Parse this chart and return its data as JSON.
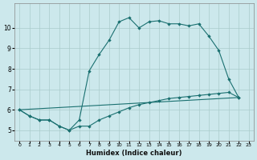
{
  "xlabel": "Humidex (Indice chaleur)",
  "background_color": "#cce8ec",
  "grid_color": "#aacccc",
  "line_color": "#1a7070",
  "xlim": [
    -0.5,
    23.5
  ],
  "ylim": [
    4.5,
    11.2
  ],
  "xticks": [
    0,
    1,
    2,
    3,
    4,
    5,
    6,
    7,
    8,
    9,
    10,
    11,
    12,
    13,
    14,
    15,
    16,
    17,
    18,
    19,
    20,
    21,
    22,
    23
  ],
  "yticks": [
    5,
    6,
    7,
    8,
    9,
    10
  ],
  "line1_x": [
    0,
    1,
    2,
    3,
    4,
    5,
    6,
    7,
    8,
    9,
    10,
    11,
    12,
    13,
    14,
    15,
    16,
    17,
    18,
    19,
    20,
    21,
    22
  ],
  "line1_y": [
    6.0,
    5.7,
    5.5,
    5.5,
    5.2,
    5.0,
    5.5,
    7.9,
    8.7,
    9.4,
    10.3,
    10.5,
    10.0,
    10.3,
    10.35,
    10.2,
    10.2,
    10.1,
    10.2,
    9.6,
    8.9,
    7.5,
    6.6
  ],
  "line2_x": [
    0,
    22
  ],
  "line2_y": [
    6.0,
    6.6
  ],
  "line3_x": [
    0,
    1,
    2,
    3,
    4,
    5,
    6,
    7,
    8,
    9,
    10,
    11,
    12,
    13,
    14,
    15,
    16,
    17,
    18,
    19,
    20,
    21,
    22
  ],
  "line3_y": [
    6.0,
    5.7,
    5.5,
    5.5,
    5.2,
    5.0,
    5.2,
    5.2,
    5.5,
    5.7,
    5.9,
    6.1,
    6.25,
    6.35,
    6.45,
    6.55,
    6.6,
    6.65,
    6.7,
    6.75,
    6.8,
    6.85,
    6.6
  ]
}
